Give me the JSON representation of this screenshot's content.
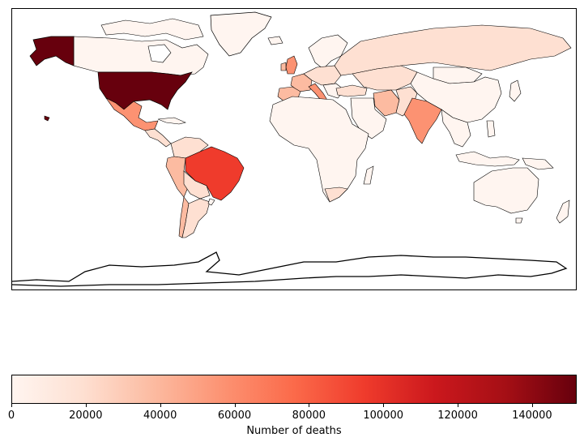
{
  "figure": {
    "type": "choropleth",
    "projection": "plate-carree",
    "colormap": "Reds"
  },
  "colorbar": {
    "label": "Number of deaths",
    "vmin": 0,
    "vmax": 152000,
    "ticks": [
      0,
      20000,
      40000,
      60000,
      80000,
      100000,
      120000,
      140000
    ],
    "tick_labels": [
      "0",
      "20000",
      "40000",
      "60000",
      "80000",
      "100000",
      "120000",
      "140000"
    ],
    "colors": [
      "#fff5f0",
      "#fee0d2",
      "#fcbba1",
      "#fc9272",
      "#fb6a4a",
      "#ef3b2c",
      "#cb181d",
      "#a50f15",
      "#67000d"
    ]
  },
  "chart_data": {
    "type": "heatmap",
    "description_values_unit": "Number of deaths",
    "regions": [
      {
        "name": "United States",
        "value": 152000
      },
      {
        "name": "Alaska",
        "value": 152000
      },
      {
        "name": "Brazil",
        "value": 95000
      },
      {
        "name": "Mexico",
        "value": 50000
      },
      {
        "name": "India",
        "value": 45000
      },
      {
        "name": "United Kingdom",
        "value": 46000
      },
      {
        "name": "Italy",
        "value": 35000
      },
      {
        "name": "Spain",
        "value": 28000
      },
      {
        "name": "France",
        "value": 30000
      },
      {
        "name": "Peru",
        "value": 20000
      },
      {
        "name": "Colombia",
        "value": 12000
      },
      {
        "name": "Chile",
        "value": 10000
      },
      {
        "name": "Russia",
        "value": 14000
      },
      {
        "name": "Iran",
        "value": 17000
      },
      {
        "name": "South Africa",
        "value": 9000
      },
      {
        "name": "Canada",
        "value": 9000
      },
      {
        "name": "Argentina",
        "value": 4000
      },
      {
        "name": "China",
        "value": 4600
      },
      {
        "name": "Australia",
        "value": 200
      },
      {
        "name": "Greenland",
        "value": 0
      }
    ]
  }
}
